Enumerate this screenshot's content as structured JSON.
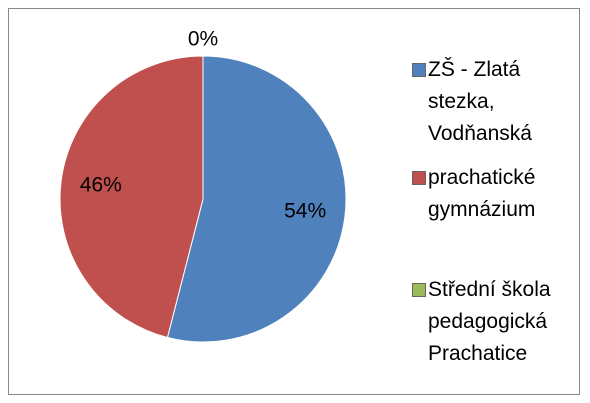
{
  "chart_data": {
    "type": "pie",
    "categories": [
      "ZŠ - Zlatá stezka, Vodňanská",
      "prachatické gymnázium",
      "Střední škola pedagogická Prachatice"
    ],
    "values": [
      54,
      46,
      0
    ],
    "value_labels": [
      "54%",
      "46%",
      "0%"
    ],
    "colors": [
      "#4f81bd",
      "#c0504d",
      "#9bbb59"
    ]
  }
}
